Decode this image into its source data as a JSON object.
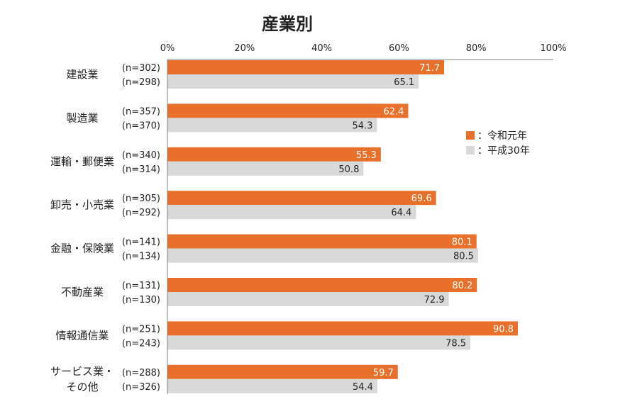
{
  "chart_data": {
    "type": "bar",
    "orientation": "horizontal",
    "title": "産業別",
    "xlabel": "",
    "ylabel": "",
    "xlim": [
      0,
      100
    ],
    "x_ticks": [
      "0%",
      "20%",
      "40%",
      "60%",
      "80%",
      "100%"
    ],
    "x_tick_values": [
      0,
      20,
      40,
      60,
      80,
      100
    ],
    "legend_position": "right",
    "colors": {
      "series_0": "#E8702A",
      "series_1": "#D9D9D9",
      "axis": "#808080",
      "text": "#222222",
      "label_on_dark": "#ffffff"
    },
    "categories": [
      {
        "label_lines": [
          "建設業"
        ]
      },
      {
        "label_lines": [
          "製造業"
        ]
      },
      {
        "label_lines": [
          "運輸・郵便業"
        ]
      },
      {
        "label_lines": [
          "卸売・小売業"
        ]
      },
      {
        "label_lines": [
          "金融・保険業"
        ]
      },
      {
        "label_lines": [
          "不動産業"
        ]
      },
      {
        "label_lines": [
          "情報通信業"
        ]
      },
      {
        "label_lines": [
          "サービス業・",
          "その他"
        ]
      }
    ],
    "series": [
      {
        "name": "令和元年",
        "legend_label": "：令和元年",
        "values": [
          71.7,
          62.4,
          55.3,
          69.6,
          80.1,
          80.2,
          90.8,
          59.7
        ],
        "labels": [
          "71.7",
          "62.4",
          "55.3",
          "69.6",
          "80.1",
          "80.2",
          "90.8",
          "59.7"
        ],
        "n": [
          "(n=302)",
          "(n=357)",
          "(n=340)",
          "(n=305)",
          "(n=141)",
          "(n=131)",
          "(n=251)",
          "(n=288)"
        ]
      },
      {
        "name": "平成30年",
        "legend_label": "：平成30年",
        "values": [
          65.1,
          54.3,
          50.8,
          64.4,
          80.5,
          72.9,
          78.5,
          54.4
        ],
        "labels": [
          "65.1",
          "54.3",
          "50.8",
          "64.4",
          "80.5",
          "72.9",
          "78.5",
          "54.4"
        ],
        "n": [
          "(n=298)",
          "(n=370)",
          "(n=314)",
          "(n=292)",
          "(n=134)",
          "(n=130)",
          "(n=243)",
          "(n=326)"
        ]
      }
    ]
  }
}
